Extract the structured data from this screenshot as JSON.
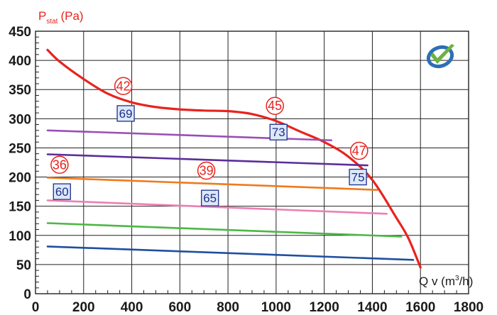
{
  "chart_data": {
    "type": "line",
    "title": "",
    "ylabel": {
      "main": "P",
      "sub": "stat",
      "unit": "(Pa)"
    },
    "xlabel": {
      "main": "Q v (m",
      "sup": "3",
      "unit": "/h)"
    },
    "xlim": [
      0,
      1800
    ],
    "ylim": [
      0,
      450
    ],
    "xticks": [
      0,
      200,
      400,
      600,
      800,
      1000,
      1200,
      1400,
      1600,
      1800
    ],
    "yticks": [
      0,
      50,
      100,
      150,
      200,
      250,
      300,
      350,
      400,
      450
    ],
    "grid": true,
    "series": [
      {
        "color": "#e8231e",
        "points": [
          [
            50,
            418
          ],
          [
            100,
            398
          ],
          [
            200,
            368
          ],
          [
            300,
            343
          ],
          [
            400,
            328
          ],
          [
            500,
            320
          ],
          [
            600,
            316
          ],
          [
            700,
            314
          ],
          [
            800,
            313
          ],
          [
            900,
            308
          ],
          [
            1000,
            296
          ],
          [
            1100,
            278
          ],
          [
            1200,
            260
          ],
          [
            1300,
            235
          ],
          [
            1400,
            195
          ],
          [
            1500,
            130
          ],
          [
            1550,
            95
          ],
          [
            1600,
            45
          ]
        ]
      },
      {
        "color": "#9a4fb6",
        "points": [
          [
            50,
            280
          ],
          [
            1230,
            263
          ]
        ]
      },
      {
        "color": "#5b2d9a",
        "points": [
          [
            50,
            239
          ],
          [
            1380,
            220
          ]
        ]
      },
      {
        "color": "#f07a1c",
        "points": [
          [
            50,
            199
          ],
          [
            1420,
            178
          ]
        ]
      },
      {
        "color": "#ec7fb3",
        "points": [
          [
            50,
            160
          ],
          [
            1460,
            137
          ]
        ]
      },
      {
        "color": "#4cb844",
        "points": [
          [
            50,
            121
          ],
          [
            1520,
            98
          ]
        ]
      },
      {
        "color": "#1f4fa0",
        "points": [
          [
            50,
            81
          ],
          [
            1570,
            58
          ]
        ]
      }
    ],
    "annotations": [
      {
        "kind": "circle",
        "text": "42",
        "x": 365,
        "y": 356
      },
      {
        "kind": "box",
        "text": "69",
        "x": 375,
        "y": 309
      },
      {
        "kind": "circle",
        "text": "45",
        "x": 995,
        "y": 322
      },
      {
        "kind": "box",
        "text": "73",
        "x": 1010,
        "y": 277
      },
      {
        "kind": "circle",
        "text": "47",
        "x": 1345,
        "y": 245
      },
      {
        "kind": "box",
        "text": "75",
        "x": 1340,
        "y": 200
      },
      {
        "kind": "circle",
        "text": "36",
        "x": 100,
        "y": 221
      },
      {
        "kind": "box",
        "text": "60",
        "x": 110,
        "y": 175
      },
      {
        "kind": "circle",
        "text": "39",
        "x": 710,
        "y": 211
      },
      {
        "kind": "box",
        "text": "65",
        "x": 725,
        "y": 164
      }
    ]
  },
  "logo": {
    "name": "checkmark-logo",
    "colors": [
      "#2d6fb5",
      "#6ab43e"
    ]
  }
}
